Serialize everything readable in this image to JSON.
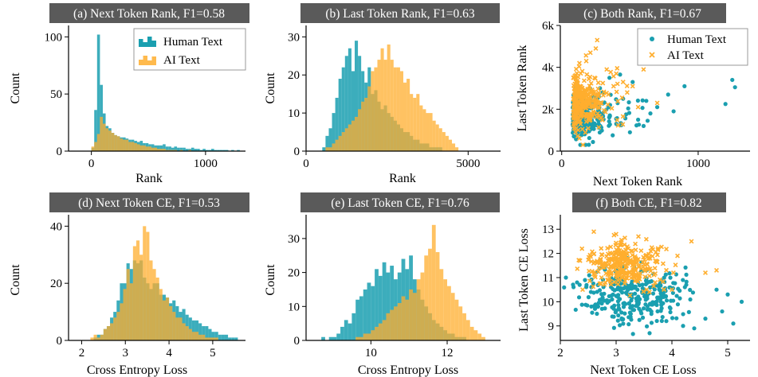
{
  "colors": {
    "human": "#1a9fb0",
    "ai": "#ffae2e",
    "title_bg": "#5a5a5a"
  },
  "chart_data": [
    {
      "id": "a",
      "type": "bar",
      "subtype": "histogram",
      "title": "(a) Next Token Rank, F1=0.58",
      "xlabel": "Rank",
      "ylabel": "Count",
      "xlim": [
        -200,
        1350
      ],
      "ylim": [
        0,
        110
      ],
      "xticks": [
        0,
        1000
      ],
      "xtick_labels": [
        "0",
        "1000"
      ],
      "yticks": [
        0,
        50,
        100
      ],
      "ytick_labels": [
        "0",
        "50",
        "100"
      ],
      "legend": {
        "position": "top-right",
        "entries": [
          "Human Text",
          "AI Text"
        ],
        "marker": "hist"
      },
      "bin_start": 0,
      "bin_width": 25,
      "series": [
        {
          "name": "Human Text",
          "values": [
            3,
            36,
            102,
            58,
            33,
            22,
            20,
            16,
            14,
            13,
            12,
            12,
            11,
            10,
            10,
            9,
            8,
            9,
            7,
            7,
            6,
            6,
            5,
            5,
            5,
            6,
            4,
            4,
            3,
            4,
            3,
            3,
            3,
            2,
            2,
            3,
            2,
            2,
            1,
            2,
            1,
            1,
            2,
            1,
            1,
            1,
            1,
            1,
            0,
            1,
            0,
            1
          ]
        },
        {
          "name": "AI Text",
          "values": [
            4,
            8,
            15,
            30,
            24,
            20,
            18,
            16,
            14,
            13,
            11,
            10,
            10,
            8,
            8,
            7,
            6,
            5,
            5,
            4,
            4,
            3,
            3,
            2,
            2,
            2,
            1,
            1,
            1,
            1,
            0,
            1,
            0,
            0,
            1,
            0,
            0,
            0,
            0,
            0,
            0,
            0,
            0,
            0,
            0,
            0,
            0,
            0,
            0,
            0,
            0,
            0
          ]
        }
      ]
    },
    {
      "id": "b",
      "type": "bar",
      "subtype": "histogram",
      "title": "(b) Last Token Rank, F1=0.63",
      "xlabel": "Rank",
      "ylabel": "Count",
      "xlim": [
        0,
        6000
      ],
      "ylim": [
        0,
        33
      ],
      "xticks": [
        0,
        5000
      ],
      "xtick_labels": [
        "0",
        "5000"
      ],
      "yticks": [
        0,
        10,
        20,
        30
      ],
      "ytick_labels": [
        "0",
        "10",
        "20",
        "30"
      ],
      "bin_start": 500,
      "bin_width": 100,
      "series": [
        {
          "name": "Human Text",
          "values": [
            1,
            4,
            6,
            10,
            14,
            19,
            22,
            25,
            27,
            21,
            29,
            25,
            21,
            18,
            22,
            15,
            16,
            13,
            11,
            12,
            10,
            9,
            8,
            7,
            6,
            5,
            5,
            4,
            3,
            3,
            2,
            2,
            2,
            1,
            1,
            1,
            1,
            0,
            0,
            0,
            0,
            0
          ]
        },
        {
          "name": "AI Text",
          "values": [
            0,
            1,
            1,
            2,
            3,
            4,
            5,
            6,
            7,
            8,
            9,
            11,
            13,
            14,
            17,
            21,
            22,
            24,
            27,
            24,
            28,
            24,
            22,
            22,
            21,
            18,
            19,
            15,
            14,
            15,
            12,
            11,
            10,
            10,
            8,
            7,
            6,
            5,
            4,
            3,
            2,
            1
          ]
        }
      ]
    },
    {
      "id": "c",
      "type": "scatter",
      "title": "(c) Both Rank, F1=0.67",
      "xlabel": "Next Token Rank",
      "ylabel": "Last Token Rank",
      "xlim": [
        -10,
        1380
      ],
      "ylim": [
        0,
        6000
      ],
      "xticks": [
        0,
        1000
      ],
      "xtick_labels": [
        "0",
        "1000"
      ],
      "yticks": [
        0,
        2000,
        4000,
        6000
      ],
      "ytick_labels": [
        "0",
        "2k",
        "4k",
        "6k"
      ],
      "legend": {
        "position": "top-right",
        "entries": [
          "Human Text",
          "AI Text"
        ],
        "marker": "scatter"
      },
      "series": [
        {
          "name": "Human Text",
          "marker": "circle",
          "center": [
            150,
            1700
          ],
          "spread": [
            140,
            550
          ],
          "count": 320,
          "seed": 11,
          "outliers": [
            [
              1250,
              3400
            ],
            [
              1270,
              3050
            ],
            [
              1200,
              2250
            ],
            [
              900,
              3100
            ],
            [
              780,
              2700
            ],
            [
              620,
              2400
            ],
            [
              560,
              1500
            ],
            [
              500,
              900
            ],
            [
              650,
              1800
            ],
            [
              700,
              2100
            ],
            [
              520,
              3300
            ],
            [
              450,
              2500
            ],
            [
              400,
              1300
            ],
            [
              600,
              1200
            ],
            [
              820,
              1900
            ],
            [
              350,
              3500
            ],
            [
              300,
              2800
            ]
          ]
        },
        {
          "name": "AI Text",
          "marker": "x",
          "center": [
            140,
            2350
          ],
          "spread": [
            110,
            650
          ],
          "count": 320,
          "seed": 23,
          "outliers": [
            [
              260,
              5300
            ],
            [
              250,
              4900
            ],
            [
              210,
              4700
            ],
            [
              180,
              4300
            ],
            [
              130,
              4200
            ],
            [
              400,
              3700
            ],
            [
              450,
              3300
            ],
            [
              520,
              3100
            ],
            [
              600,
              3900
            ],
            [
              330,
              3900
            ],
            [
              700,
              2300
            ],
            [
              480,
              2800
            ],
            [
              380,
              3100
            ],
            [
              560,
              2100
            ]
          ]
        }
      ]
    },
    {
      "id": "d",
      "type": "bar",
      "subtype": "histogram",
      "title": "(d) Next Token CE, F1=0.53",
      "xlabel": "Cross Entropy Loss",
      "ylabel": "Count",
      "xlim": [
        1.7,
        5.75
      ],
      "ylim": [
        0,
        44
      ],
      "xticks": [
        2,
        3,
        4,
        5
      ],
      "xtick_labels": [
        "2",
        "3",
        "4",
        "5"
      ],
      "yticks": [
        0,
        20,
        40
      ],
      "ytick_labels": [
        "0",
        "20",
        "40"
      ],
      "bin_start": 2.2,
      "bin_width": 0.075,
      "series": [
        {
          "name": "Human Text",
          "values": [
            0,
            1,
            2,
            2,
            4,
            5,
            8,
            10,
            14,
            20,
            20,
            27,
            25,
            28,
            27,
            28,
            22,
            20,
            18,
            20,
            20,
            16,
            16,
            15,
            13,
            14,
            12,
            10,
            11,
            9,
            8,
            7,
            7,
            6,
            5,
            5,
            4,
            3,
            3,
            2,
            2,
            2,
            1,
            1,
            1
          ]
        },
        {
          "name": "AI Text",
          "values": [
            1,
            2,
            1,
            2,
            4,
            5,
            6,
            8,
            10,
            13,
            18,
            25,
            20,
            33,
            35,
            30,
            40,
            38,
            28,
            25,
            22,
            18,
            14,
            15,
            12,
            10,
            8,
            8,
            6,
            5,
            4,
            3,
            3,
            2,
            2,
            1,
            1,
            1,
            1,
            0,
            0,
            0,
            0,
            0,
            0
          ]
        }
      ]
    },
    {
      "id": "e",
      "type": "bar",
      "subtype": "histogram",
      "title": "(e) Last Token CE, F1=0.76",
      "xlabel": "Cross Entropy Loss",
      "ylabel": "Count",
      "xlim": [
        8.3,
        13.4
      ],
      "ylim": [
        0,
        37
      ],
      "xticks": [
        10,
        12
      ],
      "xtick_labels": [
        "10",
        "12"
      ],
      "yticks": [
        0,
        10,
        20,
        30
      ],
      "ytick_labels": [
        "0",
        "10",
        "20",
        "30"
      ],
      "bin_start": 8.7,
      "bin_width": 0.1,
      "series": [
        {
          "name": "Human Text",
          "values": [
            1,
            0,
            1,
            1,
            2,
            4,
            6,
            5,
            8,
            12,
            13,
            15,
            17,
            16,
            21,
            19,
            23,
            20,
            22,
            18,
            20,
            24,
            21,
            25,
            18,
            15,
            12,
            10,
            8,
            6,
            5,
            4,
            3,
            2,
            2,
            1,
            1,
            1,
            0,
            0,
            0,
            0,
            0
          ]
        },
        {
          "name": "AI Text",
          "values": [
            0,
            0,
            0,
            0,
            0,
            0,
            0,
            0,
            0,
            1,
            1,
            2,
            2,
            3,
            4,
            5,
            6,
            8,
            9,
            10,
            11,
            13,
            12,
            15,
            14,
            18,
            20,
            25,
            27,
            34,
            26,
            21,
            18,
            16,
            14,
            12,
            10,
            8,
            6,
            4,
            3,
            2,
            1
          ]
        }
      ]
    },
    {
      "id": "f",
      "type": "scatter",
      "title": "(f) Both CE, F1=0.82",
      "xlabel": "Next Token CE Loss",
      "ylabel": "Last Token CE Loss",
      "xlim": [
        2.0,
        5.4
      ],
      "ylim": [
        8.4,
        13.6
      ],
      "xticks": [
        2,
        3,
        4,
        5
      ],
      "xtick_labels": [
        "2",
        "3",
        "4",
        "5"
      ],
      "yticks": [
        9,
        10,
        11,
        12,
        13
      ],
      "ytick_labels": [
        "9",
        "10",
        "11",
        "12",
        "13"
      ],
      "series": [
        {
          "name": "Human Text",
          "marker": "circle",
          "center": [
            3.3,
            10.35
          ],
          "spread": [
            0.45,
            0.6
          ],
          "count": 300,
          "seed": 37,
          "outliers": [
            [
              5.25,
              10.0
            ],
            [
              5.1,
              9.1
            ],
            [
              4.9,
              9.6
            ],
            [
              4.6,
              9.3
            ],
            [
              4.4,
              8.9
            ],
            [
              2.1,
              11.0
            ],
            [
              2.3,
              10.8
            ],
            [
              3.6,
              8.7
            ],
            [
              4.2,
              9.0
            ],
            [
              3.9,
              9.2
            ],
            [
              5.0,
              10.3
            ],
            [
              4.8,
              10.5
            ]
          ]
        },
        {
          "name": "AI Text",
          "marker": "x",
          "center": [
            3.15,
            11.55
          ],
          "spread": [
            0.35,
            0.45
          ],
          "count": 300,
          "seed": 41,
          "outliers": [
            [
              2.6,
              12.9
            ],
            [
              3.0,
              12.8
            ],
            [
              3.4,
              12.7
            ],
            [
              4.35,
              12.5
            ],
            [
              4.6,
              11.2
            ],
            [
              4.8,
              11.3
            ],
            [
              4.1,
              11.9
            ],
            [
              3.7,
              10.8
            ],
            [
              2.4,
              10.5
            ],
            [
              4.0,
              10.5
            ]
          ]
        }
      ]
    }
  ]
}
